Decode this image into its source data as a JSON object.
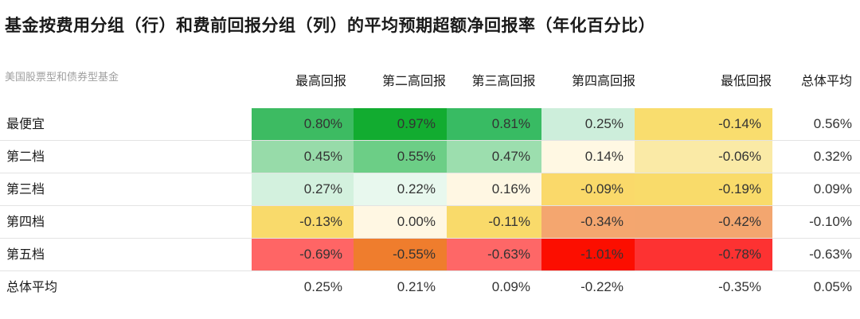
{
  "chart_data": {
    "type": "heatmap",
    "title": "基金按费用分组（行）和费前回报分组（列）的平均预期超额净回报率（年化百分比）",
    "subtitle": "美国股票型和债券型基金",
    "columns": [
      "最高回报",
      "第二高回报",
      "第三高回报",
      "第四高回报",
      "最低回报",
      "总体平均"
    ],
    "rows": [
      {
        "label": "最便宜",
        "values": [
          "0.80%",
          "0.97%",
          "0.81%",
          "0.25%",
          "-0.14%",
          "0.56%"
        ]
      },
      {
        "label": "第二档",
        "values": [
          "0.45%",
          "0.55%",
          "0.47%",
          "0.14%",
          "-0.06%",
          "0.32%"
        ]
      },
      {
        "label": "第三档",
        "values": [
          "0.27%",
          "0.22%",
          "0.16%",
          "-0.09%",
          "-0.19%",
          "0.09%"
        ]
      },
      {
        "label": "第四档",
        "values": [
          "-0.13%",
          "0.00%",
          "-0.11%",
          "-0.34%",
          "-0.42%",
          "-0.10%"
        ]
      },
      {
        "label": "第五档",
        "values": [
          "-0.69%",
          "-0.55%",
          "-0.63%",
          "-1.01%",
          "-0.78%",
          "-0.63%"
        ]
      },
      {
        "label": "总体平均",
        "values": [
          "0.25%",
          "0.21%",
          "0.09%",
          "-0.22%",
          "-0.35%",
          "0.05%"
        ]
      }
    ],
    "cell_colors": [
      [
        "#3dbb62",
        "#12ac30",
        "#38bb63",
        "#cdeedb",
        "#f9dd6e"
      ],
      [
        "#97dba9",
        "#6cce86",
        "#9cdeae",
        "#fff8e3",
        "#faeaa6"
      ],
      [
        "#d3f1de",
        "#e8f8ee",
        "#fff7e3",
        "#fad96a",
        "#f9db6a"
      ],
      [
        "#f9da6b",
        "#fff7e3",
        "#f9da6a",
        "#f4a66f",
        "#f3a66f"
      ],
      [
        "#ff6565",
        "#ef7d2d",
        "#fe6767",
        "#fc0e00",
        "#fd3232"
      ]
    ]
  }
}
